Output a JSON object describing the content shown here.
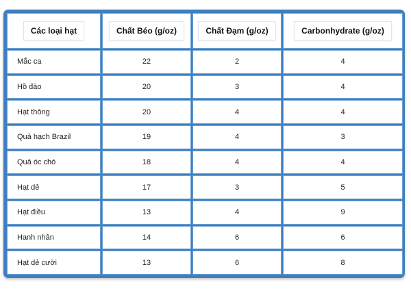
{
  "table": {
    "headers": [
      "Các loại hạt",
      "Chất Béo (g/oz)",
      "Chất Đạm (g/oz)",
      "Carbonhydrate (g/oz)"
    ],
    "rows": [
      {
        "name": "Mắc ca",
        "fat": "22",
        "protein": "2",
        "carbs": "4"
      },
      {
        "name": "Hồ đào",
        "fat": "20",
        "protein": "3",
        "carbs": "4"
      },
      {
        "name": "Hạt thông",
        "fat": "20",
        "protein": "4",
        "carbs": "4"
      },
      {
        "name": "Quả hạch Brazil",
        "fat": "19",
        "protein": "4",
        "carbs": "3"
      },
      {
        "name": "Quả óc chó",
        "fat": "18",
        "protein": "4",
        "carbs": "4"
      },
      {
        "name": "Hạt dẻ",
        "fat": "17",
        "protein": "3",
        "carbs": "5"
      },
      {
        "name": "Hạt điều",
        "fat": "13",
        "protein": "4",
        "carbs": "9"
      },
      {
        "name": "Hanh nhân",
        "fat": "14",
        "protein": "6",
        "carbs": "6"
      },
      {
        "name": "Hạt dẻ cười",
        "fat": "13",
        "protein": "6",
        "carbs": "8"
      }
    ]
  },
  "colors": {
    "frame": "#3d7fc0",
    "cell_border": "#6fa3d6",
    "cell_bg": "#ffffff"
  }
}
